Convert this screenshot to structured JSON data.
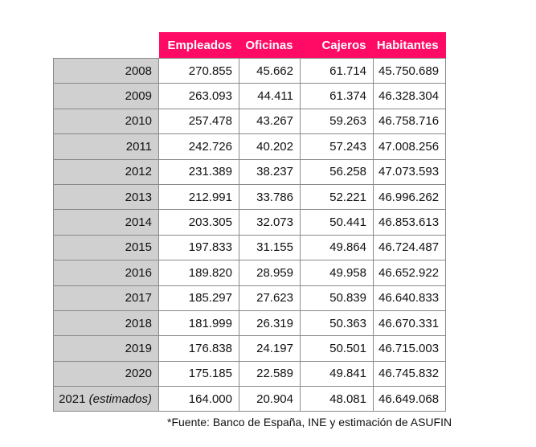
{
  "table": {
    "columns": [
      "",
      "Empleados",
      "Oficinas",
      "Cajeros",
      "Habitantes"
    ],
    "rows": [
      {
        "year": "2008",
        "note": "",
        "empleados": "270.855",
        "oficinas": "45.662",
        "cajeros": "61.714",
        "habitantes": "45.750.689"
      },
      {
        "year": "2009",
        "note": "",
        "empleados": "263.093",
        "oficinas": "44.411",
        "cajeros": "61.374",
        "habitantes": "46.328.304"
      },
      {
        "year": "2010",
        "note": "",
        "empleados": "257.478",
        "oficinas": "43.267",
        "cajeros": "59.263",
        "habitantes": "46.758.716"
      },
      {
        "year": "2011",
        "note": "",
        "empleados": "242.726",
        "oficinas": "40.202",
        "cajeros": "57.243",
        "habitantes": "47.008.256"
      },
      {
        "year": "2012",
        "note": "",
        "empleados": "231.389",
        "oficinas": "38.237",
        "cajeros": "56.258",
        "habitantes": "47.073.593"
      },
      {
        "year": "2013",
        "note": "",
        "empleados": "212.991",
        "oficinas": "33.786",
        "cajeros": "52.221",
        "habitantes": "46.996.262"
      },
      {
        "year": "2014",
        "note": "",
        "empleados": "203.305",
        "oficinas": "32.073",
        "cajeros": "50.441",
        "habitantes": "46.853.613"
      },
      {
        "year": "2015",
        "note": "",
        "empleados": "197.833",
        "oficinas": "31.155",
        "cajeros": "49.864",
        "habitantes": "46.724.487"
      },
      {
        "year": "2016",
        "note": "",
        "empleados": "189.820",
        "oficinas": "28.959",
        "cajeros": "49.958",
        "habitantes": "46.652.922"
      },
      {
        "year": "2017",
        "note": "",
        "empleados": "185.297",
        "oficinas": "27.623",
        "cajeros": "50.839",
        "habitantes": "46.640.833"
      },
      {
        "year": "2018",
        "note": "",
        "empleados": "181.999",
        "oficinas": "26.319",
        "cajeros": "50.363",
        "habitantes": "46.670.331"
      },
      {
        "year": "2019",
        "note": "",
        "empleados": "176.838",
        "oficinas": "24.197",
        "cajeros": "50.501",
        "habitantes": "46.715.003"
      },
      {
        "year": "2020",
        "note": "",
        "empleados": "175.185",
        "oficinas": "22.589",
        "cajeros": "49.841",
        "habitantes": "46.745.832"
      },
      {
        "year": "2021",
        "note": "(estimados)",
        "empleados": "164.000",
        "oficinas": "20.904",
        "cajeros": "48.081",
        "habitantes": "46.649.068"
      }
    ]
  },
  "footnote": "*Fuente: Banco de España, INE y estimación de ASUFIN",
  "colors": {
    "header_bg": "#FF0A64",
    "header_text": "#FFFFFF",
    "year_col_bg": "#D0D0D0",
    "border": "#8A8A8A"
  }
}
